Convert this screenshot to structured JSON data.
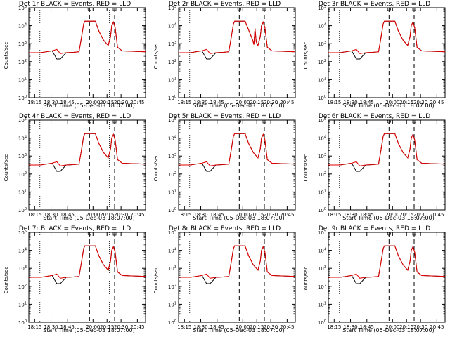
{
  "chart_data": [
    {
      "type": "line",
      "title": "Det 1r BLACK = Events, RED = LLD",
      "xlabel": "Start Time (05-Dec-03 18:07:00)",
      "ylabel": "Counts/sec",
      "x_ticks": [
        "18:15",
        "18:30",
        "18:45",
        "20:00",
        "20:15",
        "20:30",
        "20:45"
      ],
      "y_ticks": [
        "10^0",
        "10^1",
        "10^2",
        "10^3",
        "10^4",
        "10^5"
      ],
      "ylim": [
        1,
        100000
      ],
      "yscale": "log",
      "dotted_markers": [
        0.095,
        0.69
      ],
      "dashed_markers": [
        0.52,
        0.735
      ],
      "spike_style": "normal",
      "series": [
        {
          "color": "#000000"
        },
        {
          "color": "#e00000"
        }
      ]
    },
    {
      "type": "line",
      "title": "Det 2r BLACK = Events, RED = LLD",
      "xlabel": "Start Time (05-Dec-03 18:07:00)",
      "ylabel": "Counts/sec",
      "x_ticks": [
        "18:15",
        "18:30",
        "18:45",
        "20:00",
        "20:15",
        "20:30",
        "20:45"
      ],
      "y_ticks": [
        "10^0",
        "10^1",
        "10^2",
        "10^3",
        "10^4",
        "10^5"
      ],
      "ylim": [
        1,
        100000
      ],
      "yscale": "log",
      "dotted_markers": [
        0.095,
        0.69
      ],
      "dashed_markers": [
        0.52,
        0.735
      ],
      "spike_style": "notched",
      "series": [
        {
          "color": "#000000"
        },
        {
          "color": "#e00000"
        }
      ]
    },
    {
      "type": "line",
      "title": "Det 3r BLACK = Events, RED = LLD",
      "xlabel": "Start Time (05-Dec-03 18:07:00)",
      "ylabel": "Counts/sec",
      "x_ticks": [
        "18:15",
        "18:30",
        "18:45",
        "20:00",
        "20:15",
        "20:30",
        "20:45"
      ],
      "y_ticks": [
        "10^0",
        "10^1",
        "10^2",
        "10^3",
        "10^4",
        "10^5"
      ],
      "ylim": [
        1,
        100000
      ],
      "yscale": "log",
      "dotted_markers": [
        0.095,
        0.69
      ],
      "dashed_markers": [
        0.52,
        0.735
      ],
      "spike_style": "normal",
      "series": [
        {
          "color": "#000000"
        },
        {
          "color": "#e00000"
        }
      ]
    },
    {
      "type": "line",
      "title": "Det 4r BLACK = Events, RED = LLD",
      "xlabel": "Start Time (05-Dec-03 18:07:00)",
      "ylabel": "Counts/sec",
      "x_ticks": [
        "18:15",
        "18:30",
        "18:45",
        "20:00",
        "20:15",
        "20:30",
        "20:45"
      ],
      "y_ticks": [
        "10^0",
        "10^1",
        "10^2",
        "10^3",
        "10^4",
        "10^5"
      ],
      "ylim": [
        1,
        100000
      ],
      "yscale": "log",
      "dotted_markers": [
        0.095,
        0.69
      ],
      "dashed_markers": [
        0.52,
        0.735
      ],
      "spike_style": "normal",
      "series": [
        {
          "color": "#000000"
        },
        {
          "color": "#e00000"
        }
      ]
    },
    {
      "type": "line",
      "title": "Det 5r BLACK = Events, RED = LLD",
      "xlabel": "Start Time (05-Dec-03 18:07:00)",
      "ylabel": "Counts/sec",
      "x_ticks": [
        "18:15",
        "18:30",
        "18:45",
        "20:00",
        "20:15",
        "20:30",
        "20:45"
      ],
      "y_ticks": [
        "10^0",
        "10^1",
        "10^2",
        "10^3",
        "10^4",
        "10^5"
      ],
      "ylim": [
        1,
        100000
      ],
      "yscale": "log",
      "dotted_markers": [
        0.095,
        0.69
      ],
      "dashed_markers": [
        0.52,
        0.735
      ],
      "spike_style": "normal",
      "series": [
        {
          "color": "#000000"
        },
        {
          "color": "#e00000"
        }
      ]
    },
    {
      "type": "line",
      "title": "Det 6r BLACK = Events, RED = LLD",
      "xlabel": "Start Time (05-Dec-03 18:07:00)",
      "ylabel": "Counts/sec",
      "x_ticks": [
        "18:15",
        "18:30",
        "18:45",
        "20:00",
        "20:15",
        "20:30",
        "20:45"
      ],
      "y_ticks": [
        "10^0",
        "10^1",
        "10^2",
        "10^3",
        "10^4",
        "10^5"
      ],
      "ylim": [
        1,
        100000
      ],
      "yscale": "log",
      "dotted_markers": [
        0.095,
        0.69
      ],
      "dashed_markers": [
        0.52,
        0.735
      ],
      "spike_style": "normal",
      "series": [
        {
          "color": "#000000"
        },
        {
          "color": "#e00000"
        }
      ]
    },
    {
      "type": "line",
      "title": "Det 7r BLACK = Events, RED = LLD",
      "xlabel": "Start Time (05-Dec-03 18:07:00)",
      "ylabel": "Counts/sec",
      "x_ticks": [
        "18:15",
        "18:30",
        "18:45",
        "20:00",
        "20:15",
        "20:30",
        "20:45"
      ],
      "y_ticks": [
        "10^0",
        "10^1",
        "10^2",
        "10^3",
        "10^4",
        "10^5"
      ],
      "ylim": [
        1,
        100000
      ],
      "yscale": "log",
      "dotted_markers": [
        0.095,
        0.69
      ],
      "dashed_markers": [
        0.52,
        0.735
      ],
      "spike_style": "normal",
      "series": [
        {
          "color": "#000000"
        },
        {
          "color": "#e00000"
        }
      ]
    },
    {
      "type": "line",
      "title": "Det 8r BLACK = Events, RED = LLD",
      "xlabel": "Start Time (05-Dec-03 18:07:00)",
      "ylabel": "Counts/sec",
      "x_ticks": [
        "18:15",
        "18:30",
        "18:45",
        "20:00",
        "20:15",
        "20:30",
        "20:45"
      ],
      "y_ticks": [
        "10^0",
        "10^1",
        "10^2",
        "10^3",
        "10^4",
        "10^5"
      ],
      "ylim": [
        1,
        100000
      ],
      "yscale": "log",
      "dotted_markers": [
        0.095,
        0.69
      ],
      "dashed_markers": [
        0.52,
        0.735
      ],
      "spike_style": "normal",
      "series": [
        {
          "color": "#000000"
        },
        {
          "color": "#e00000"
        }
      ]
    },
    {
      "type": "line",
      "title": "Det 9r BLACK = Events, RED = LLD",
      "xlabel": "Start Time (05-Dec-03 18:07:00)",
      "ylabel": "Counts/sec",
      "x_ticks": [
        "18:15",
        "18:30",
        "18:45",
        "20:00",
        "20:15",
        "20:30",
        "20:45"
      ],
      "y_ticks": [
        "10^0",
        "10^1",
        "10^2",
        "10^3",
        "10^4",
        "10^5"
      ],
      "ylim": [
        1,
        100000
      ],
      "yscale": "log",
      "dotted_markers": [
        0.095,
        0.69
      ],
      "dashed_markers": [
        0.52,
        0.735
      ],
      "spike_style": "normal",
      "series": [
        {
          "color": "#000000"
        },
        {
          "color": "#e00000"
        }
      ]
    }
  ]
}
